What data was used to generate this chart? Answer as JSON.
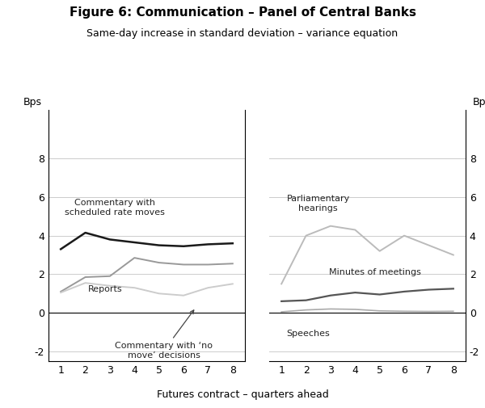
{
  "title": "Figure 6: Communication – Panel of Central Banks",
  "subtitle": "Same-day increase in standard deviation – variance equation",
  "xlabel": "Futures contract – quarters ahead",
  "ylabel_left": "Bps",
  "ylabel_right": "Bps",
  "x": [
    1,
    2,
    3,
    4,
    5,
    6,
    7,
    8
  ],
  "left_panel": {
    "commentary_scheduled": [
      3.3,
      4.15,
      3.8,
      3.65,
      3.5,
      3.45,
      3.55,
      3.6
    ],
    "reports": [
      1.1,
      1.85,
      1.9,
      2.85,
      2.6,
      2.5,
      2.5,
      2.55
    ],
    "commentary_no_move": [
      1.05,
      1.55,
      1.4,
      1.3,
      1.0,
      0.9,
      1.3,
      1.5
    ]
  },
  "right_panel": {
    "parliamentary": [
      1.5,
      4.0,
      4.5,
      4.3,
      3.2,
      4.0,
      3.5,
      3.0
    ],
    "minutes": [
      0.6,
      0.65,
      0.9,
      1.05,
      0.95,
      1.1,
      1.2,
      1.25
    ],
    "speeches": [
      0.05,
      0.15,
      0.2,
      0.18,
      0.1,
      0.08,
      0.07,
      0.08
    ]
  },
  "ylim": [
    -2.5,
    10.5
  ],
  "yticks": [
    -2,
    0,
    2,
    4,
    6,
    8
  ],
  "yticklabels": [
    "-2",
    "0",
    "2",
    "4",
    "6",
    "8"
  ],
  "colors": {
    "commentary_scheduled": "#1a1a1a",
    "reports": "#999999",
    "commentary_no_move": "#cccccc",
    "parliamentary": "#bbbbbb",
    "minutes": "#555555",
    "speeches": "#aaaaaa"
  },
  "line_widths": {
    "commentary_scheduled": 1.8,
    "reports": 1.4,
    "commentary_no_move": 1.4,
    "parliamentary": 1.4,
    "minutes": 1.6,
    "speeches": 1.2
  },
  "bg_color": "#ffffff",
  "plot_bg": "#ffffff",
  "grid_color": "#cccccc"
}
